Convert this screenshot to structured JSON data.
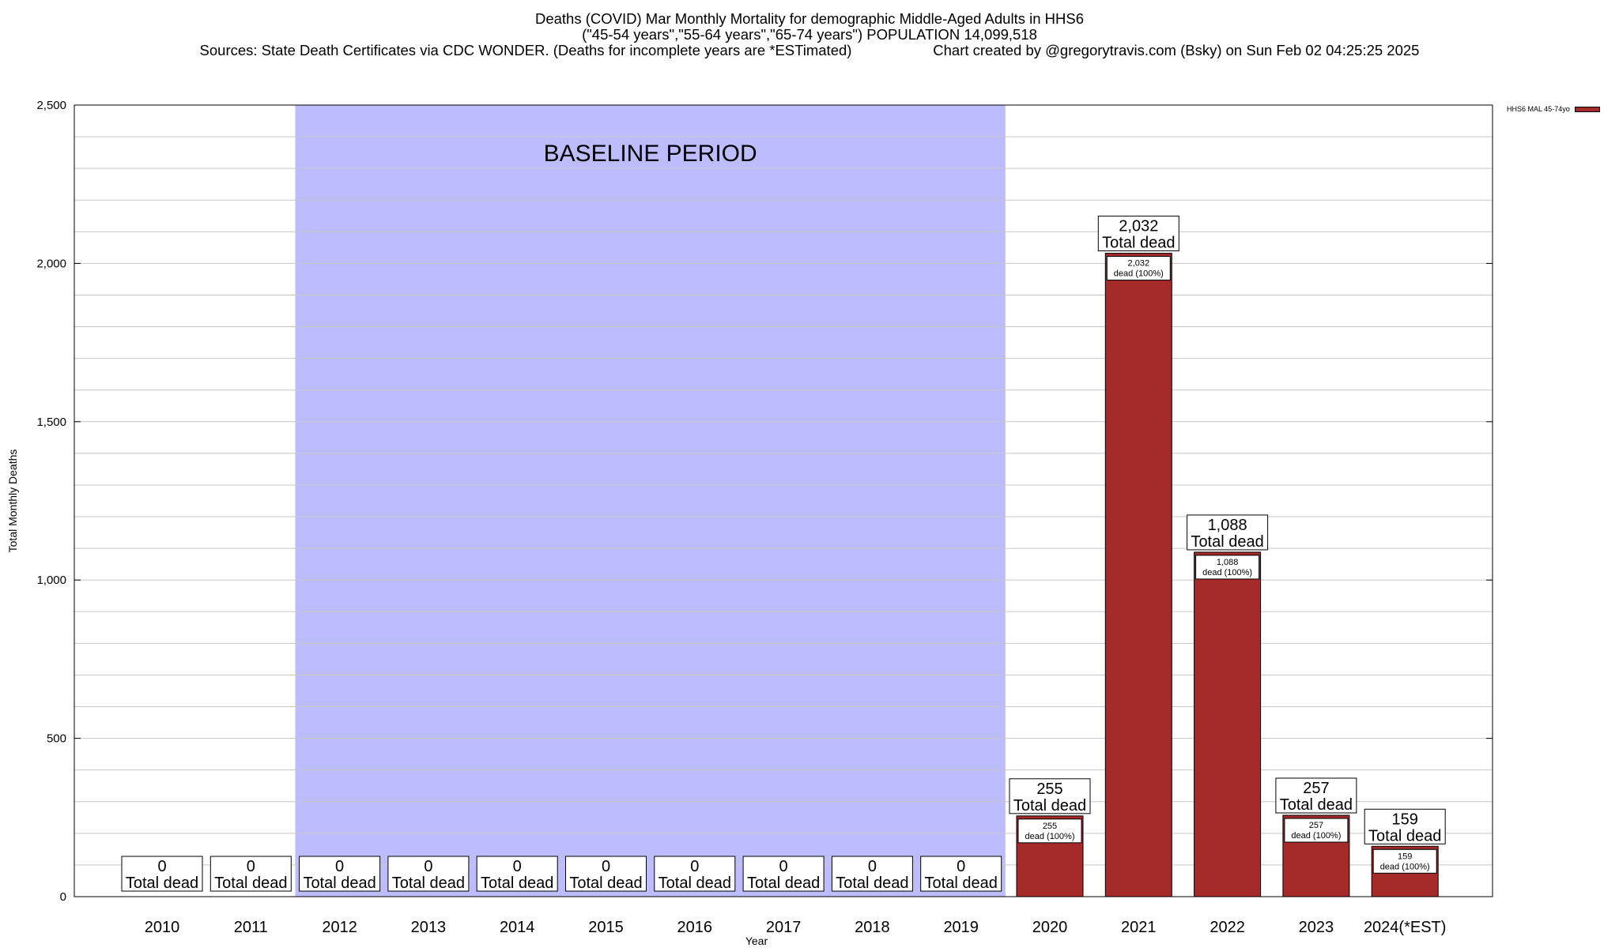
{
  "title": {
    "line1": "Deaths (COVID) Mar Monthly Mortality for demographic Middle-Aged Adults in HHS6",
    "line2": "(\"45-54 years\",\"55-64 years\",\"65-74 years\") POPULATION 14,099,518",
    "line3_left": "Sources: State Death Certificates via CDC WONDER. (Deaths for incomplete years are *ESTimated)",
    "line3_right": "Chart created by @gregorytravis.com (Bsky) on Sun Feb 02 04:25:25 2025"
  },
  "legend": {
    "label": "HHS6 MAL 45-74yo",
    "color": "#a52a2a"
  },
  "colors": {
    "bar": "#a52a2a",
    "baseline": "#bdbdfd",
    "grid": "#c8c8c8"
  },
  "chart_data": {
    "type": "bar",
    "xlabel": "Year",
    "ylabel": "Total Monthly Deaths",
    "ylim": [
      0,
      2500
    ],
    "yticks": [
      0,
      500,
      1000,
      1500,
      2000,
      2500
    ],
    "ytick_labels": [
      "0",
      "500",
      "1,000",
      "1,500",
      "2,000",
      "2,500"
    ],
    "grid": true,
    "legend_position": "top-right",
    "categories": [
      "2010",
      "2011",
      "2012",
      "2013",
      "2014",
      "2015",
      "2016",
      "2017",
      "2018",
      "2019",
      "2020",
      "2021",
      "2022",
      "2023",
      "2024(*EST)"
    ],
    "series": [
      {
        "name": "HHS6 MAL 45-74yo",
        "values": [
          0,
          0,
          0,
          0,
          0,
          0,
          0,
          0,
          0,
          0,
          255,
          2032,
          1088,
          257,
          159
        ]
      }
    ],
    "total_labels": [
      "0",
      "0",
      "0",
      "0",
      "0",
      "0",
      "0",
      "0",
      "0",
      "0",
      "255",
      "2,032",
      "1,088",
      "257",
      "159"
    ],
    "total_suffix": "Total dead",
    "inner_suffix": "dead (100%)",
    "annotations": [
      {
        "text": "BASELINE PERIOD",
        "from": "2012",
        "to": "2019"
      }
    ]
  }
}
